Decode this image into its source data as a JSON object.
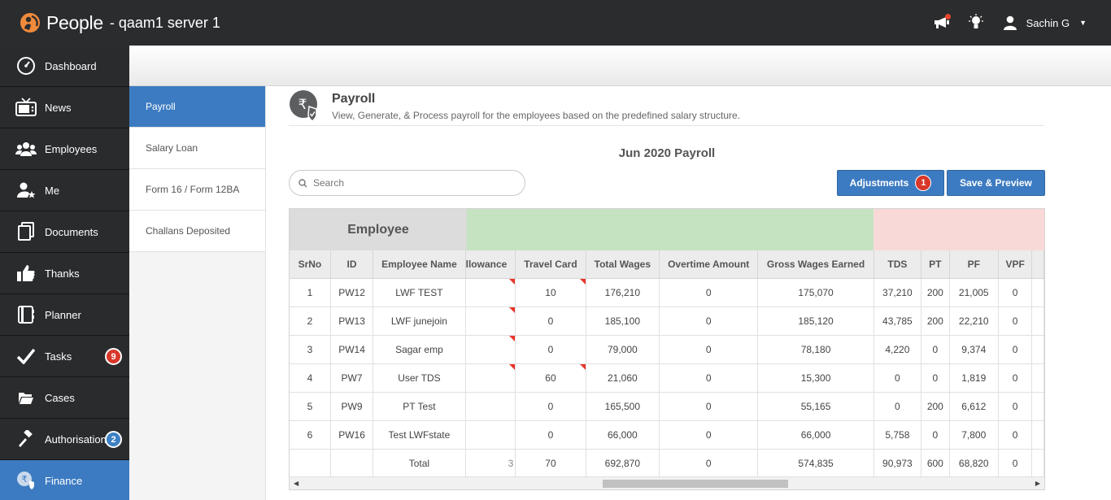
{
  "header": {
    "app_name": "People",
    "server": "- qaam1 server 1",
    "user": "Sachin G",
    "colors": {
      "bar": "#2b2c2e",
      "logo": "#f08a3c",
      "dot": "#e8452c"
    },
    "icons": [
      "megaphone-icon",
      "lightbulb-icon",
      "user-icon",
      "caret-down-icon"
    ]
  },
  "nav": {
    "items": [
      {
        "label": "Dashboard",
        "icon": "dashboard-icon"
      },
      {
        "label": "News",
        "icon": "tv-icon"
      },
      {
        "label": "Employees",
        "icon": "group-icon"
      },
      {
        "label": "Me",
        "icon": "user-star-icon"
      },
      {
        "label": "Documents",
        "icon": "documents-icon"
      },
      {
        "label": "Thanks",
        "icon": "thumbs-up-icon"
      },
      {
        "label": "Planner",
        "icon": "planner-icon"
      },
      {
        "label": "Tasks",
        "icon": "check-icon",
        "badge": "9"
      },
      {
        "label": "Cases",
        "icon": "folder-icon"
      },
      {
        "label": "Authorisations",
        "icon": "gavel-icon",
        "badge": "2"
      },
      {
        "label": "Finance",
        "icon": "finance-icon",
        "active": true
      }
    ]
  },
  "submenu": {
    "items": [
      {
        "label": "Payroll",
        "active": true
      },
      {
        "label": "Salary Loan"
      },
      {
        "label": "Form 16 / Form 12BA"
      },
      {
        "label": "Challans Deposited"
      }
    ]
  },
  "page": {
    "title": "Payroll",
    "description": "View, Generate, & Process payroll for the employees based on the predefined salary structure.",
    "payroll_title": "Jun 2020 Payroll",
    "search_placeholder": "Search",
    "adjustments_label": "Adjustments",
    "adjustments_badge": "1",
    "save_label": "Save & Preview"
  },
  "table": {
    "group_label": "Employee",
    "columns": [
      "SrNo",
      "ID",
      "Employee Name",
      "llowance",
      "Travel Card",
      "Total Wages",
      "Overtime Amount",
      "Gross Wages Earned",
      "TDS",
      "PT",
      "PF",
      "VPF",
      ""
    ],
    "rows": [
      [
        "1",
        "PW12",
        "LWF TEST",
        "",
        "10",
        "176,210",
        "0",
        "175,070",
        "37,210",
        "200",
        "21,005",
        "0",
        ""
      ],
      [
        "2",
        "PW13",
        "LWF junejoin",
        "",
        "0",
        "185,100",
        "0",
        "185,120",
        "43,785",
        "200",
        "22,210",
        "0",
        ""
      ],
      [
        "3",
        "PW14",
        "Sagar emp",
        "",
        "0",
        "79,000",
        "0",
        "78,180",
        "4,220",
        "0",
        "9,374",
        "0",
        ""
      ],
      [
        "4",
        "PW7",
        "User TDS",
        "",
        "60",
        "21,060",
        "0",
        "15,300",
        "0",
        "0",
        "1,819",
        "0",
        ""
      ],
      [
        "5",
        "PW9",
        "PT Test",
        "",
        "0",
        "165,500",
        "0",
        "55,165",
        "0",
        "200",
        "6,612",
        "0",
        ""
      ],
      [
        "6",
        "PW16",
        "Test LWFstate",
        "",
        "0",
        "66,000",
        "0",
        "66,000",
        "5,758",
        "0",
        "7,800",
        "0",
        ""
      ]
    ],
    "total": [
      "",
      "",
      "Total",
      "3",
      "70",
      "692,870",
      "0",
      "574,835",
      "90,973",
      "600",
      "68,820",
      "0",
      ""
    ]
  }
}
